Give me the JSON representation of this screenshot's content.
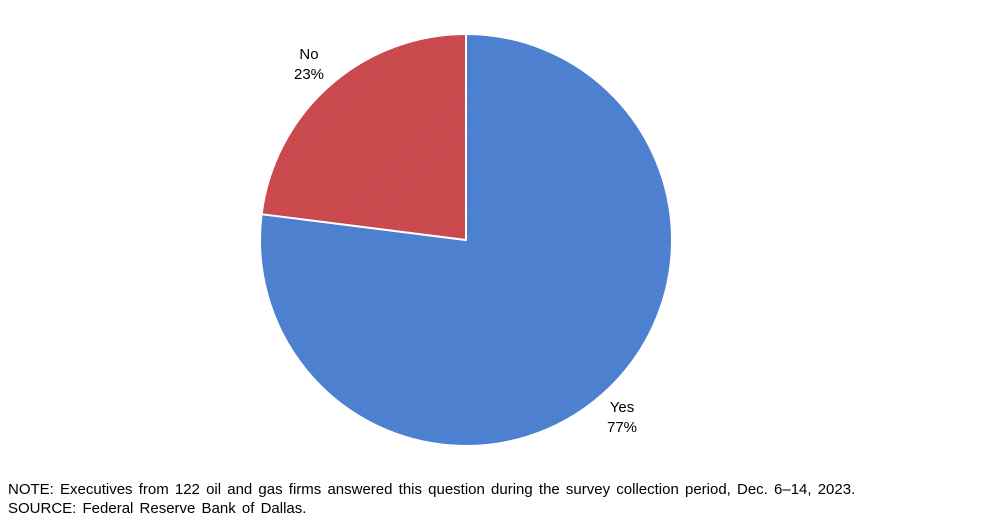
{
  "chart_data": {
    "type": "pie",
    "slices": [
      {
        "label": "Yes",
        "value": 77,
        "value_label": "77%",
        "color": "#4A7ECF"
      },
      {
        "label": "No",
        "value": 23,
        "value_label": "23%",
        "color": "#C9474B"
      }
    ],
    "start_angle_deg": 0,
    "direction": "clockwise",
    "legend": "none"
  },
  "footnotes": {
    "note": "NOTE: Executives from 122 oil and gas firms answered this question during the survey collection period, Dec. 6–14, 2023.",
    "source": "SOURCE: Federal Reserve Bank of Dallas."
  }
}
